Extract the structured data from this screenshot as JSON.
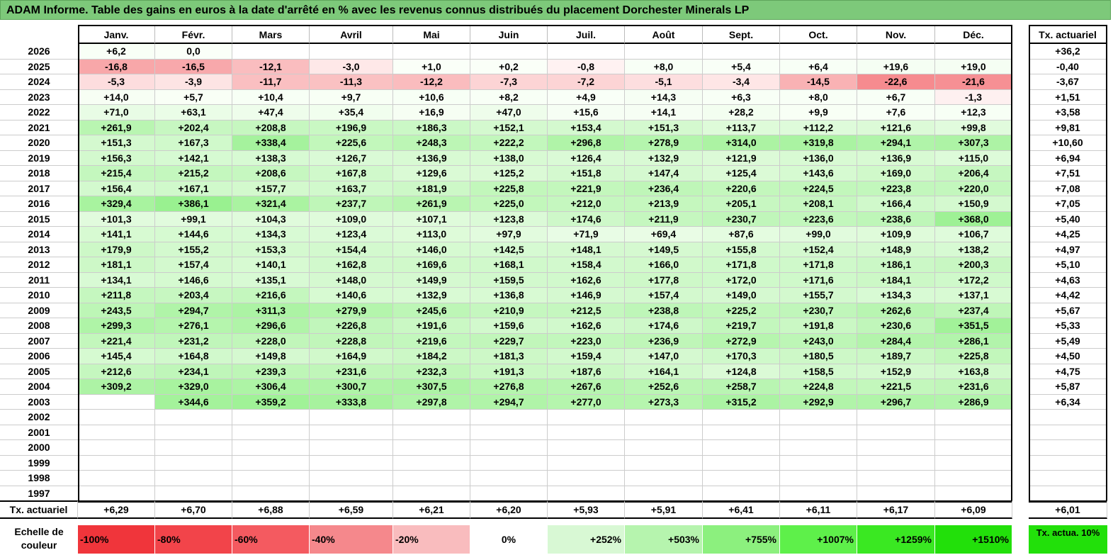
{
  "title": "ADAM Informe. Table des gains en euros à la date d'arrêté en % avec les revenus connus distribués du placement Dorchester Minerals LP",
  "months": [
    "Janv.",
    "Févr.",
    "Mars",
    "Avril",
    "Mai",
    "Juin",
    "Juil.",
    "Août",
    "Sept.",
    "Oct.",
    "Nov.",
    "Déc."
  ],
  "rate_header": "Tx. actuariel",
  "rows": [
    {
      "year": "2026",
      "values": [
        "+6,2",
        "0,0",
        "",
        "",
        "",
        "",
        "",
        "",
        "",
        "",
        "",
        ""
      ],
      "rate": "+36,2"
    },
    {
      "year": "2025",
      "values": [
        "-16,8",
        "-16,5",
        "-12,1",
        "-3,0",
        "+1,0",
        "+0,2",
        "-0,8",
        "+8,0",
        "+5,4",
        "+6,4",
        "+19,6",
        "+19,0"
      ],
      "rate": "-0,40"
    },
    {
      "year": "2024",
      "values": [
        "-5,3",
        "-3,9",
        "-11,7",
        "-11,3",
        "-12,2",
        "-7,3",
        "-7,2",
        "-5,1",
        "-3,4",
        "-14,5",
        "-22,6",
        "-21,6"
      ],
      "rate": "-3,67"
    },
    {
      "year": "2023",
      "values": [
        "+14,0",
        "+5,7",
        "+10,4",
        "+9,7",
        "+10,6",
        "+8,2",
        "+4,9",
        "+14,3",
        "+6,3",
        "+8,0",
        "+6,7",
        "-1,3"
      ],
      "rate": "+1,51"
    },
    {
      "year": "2022",
      "values": [
        "+71,0",
        "+63,1",
        "+47,4",
        "+35,4",
        "+16,9",
        "+47,0",
        "+15,6",
        "+14,1",
        "+28,2",
        "+9,9",
        "+7,6",
        "+12,3"
      ],
      "rate": "+3,58"
    },
    {
      "year": "2021",
      "values": [
        "+261,9",
        "+202,4",
        "+208,8",
        "+196,9",
        "+186,3",
        "+152,1",
        "+153,4",
        "+151,3",
        "+113,7",
        "+112,2",
        "+121,6",
        "+99,8"
      ],
      "rate": "+9,81"
    },
    {
      "year": "2020",
      "values": [
        "+151,3",
        "+167,3",
        "+338,4",
        "+225,6",
        "+248,3",
        "+222,2",
        "+296,8",
        "+278,9",
        "+314,0",
        "+319,8",
        "+294,1",
        "+307,3"
      ],
      "rate": "+10,60"
    },
    {
      "year": "2019",
      "values": [
        "+156,3",
        "+142,1",
        "+138,3",
        "+126,7",
        "+136,9",
        "+138,0",
        "+126,4",
        "+132,9",
        "+121,9",
        "+136,0",
        "+136,9",
        "+115,0"
      ],
      "rate": "+6,94"
    },
    {
      "year": "2018",
      "values": [
        "+215,4",
        "+215,2",
        "+208,6",
        "+167,8",
        "+129,6",
        "+125,2",
        "+151,8",
        "+147,4",
        "+125,4",
        "+143,6",
        "+169,0",
        "+206,4"
      ],
      "rate": "+7,51"
    },
    {
      "year": "2017",
      "values": [
        "+156,4",
        "+167,1",
        "+157,7",
        "+163,7",
        "+181,9",
        "+225,8",
        "+221,9",
        "+236,4",
        "+220,6",
        "+224,5",
        "+223,8",
        "+220,0"
      ],
      "rate": "+7,08"
    },
    {
      "year": "2016",
      "values": [
        "+329,4",
        "+386,1",
        "+321,4",
        "+237,7",
        "+261,9",
        "+225,0",
        "+212,0",
        "+213,9",
        "+205,1",
        "+208,1",
        "+166,4",
        "+150,9"
      ],
      "rate": "+7,05"
    },
    {
      "year": "2015",
      "values": [
        "+101,3",
        "+99,1",
        "+104,3",
        "+109,0",
        "+107,1",
        "+123,8",
        "+174,6",
        "+211,9",
        "+230,7",
        "+223,6",
        "+238,6",
        "+368,0"
      ],
      "rate": "+5,40"
    },
    {
      "year": "2014",
      "values": [
        "+141,1",
        "+144,6",
        "+134,3",
        "+123,4",
        "+113,0",
        "+97,9",
        "+71,9",
        "+69,4",
        "+87,6",
        "+99,0",
        "+109,9",
        "+106,7"
      ],
      "rate": "+4,25"
    },
    {
      "year": "2013",
      "values": [
        "+179,9",
        "+155,2",
        "+153,3",
        "+154,4",
        "+146,0",
        "+142,5",
        "+148,1",
        "+149,5",
        "+155,8",
        "+152,4",
        "+148,9",
        "+138,2"
      ],
      "rate": "+4,97"
    },
    {
      "year": "2012",
      "values": [
        "+181,1",
        "+157,4",
        "+140,1",
        "+162,8",
        "+169,6",
        "+168,1",
        "+158,4",
        "+166,0",
        "+171,8",
        "+171,8",
        "+186,1",
        "+200,3"
      ],
      "rate": "+5,10"
    },
    {
      "year": "2011",
      "values": [
        "+134,1",
        "+146,6",
        "+135,1",
        "+148,0",
        "+149,9",
        "+159,5",
        "+162,6",
        "+177,8",
        "+172,0",
        "+171,6",
        "+184,1",
        "+172,2"
      ],
      "rate": "+4,63"
    },
    {
      "year": "2010",
      "values": [
        "+211,8",
        "+203,4",
        "+216,6",
        "+140,6",
        "+132,9",
        "+136,8",
        "+146,9",
        "+157,4",
        "+149,0",
        "+155,7",
        "+134,3",
        "+137,1"
      ],
      "rate": "+4,42"
    },
    {
      "year": "2009",
      "values": [
        "+243,5",
        "+294,7",
        "+311,3",
        "+279,9",
        "+245,6",
        "+210,9",
        "+212,5",
        "+238,8",
        "+225,2",
        "+230,7",
        "+262,6",
        "+237,4"
      ],
      "rate": "+5,67"
    },
    {
      "year": "2008",
      "values": [
        "+299,3",
        "+276,1",
        "+296,6",
        "+226,8",
        "+191,6",
        "+159,6",
        "+162,6",
        "+174,6",
        "+219,7",
        "+191,8",
        "+230,6",
        "+351,5"
      ],
      "rate": "+5,33"
    },
    {
      "year": "2007",
      "values": [
        "+221,4",
        "+231,2",
        "+228,0",
        "+228,8",
        "+219,6",
        "+229,7",
        "+223,0",
        "+236,9",
        "+272,9",
        "+243,0",
        "+284,4",
        "+286,1"
      ],
      "rate": "+5,49"
    },
    {
      "year": "2006",
      "values": [
        "+145,4",
        "+164,8",
        "+149,8",
        "+164,9",
        "+184,2",
        "+181,3",
        "+159,4",
        "+147,0",
        "+170,3",
        "+180,5",
        "+189,7",
        "+225,8"
      ],
      "rate": "+4,50"
    },
    {
      "year": "2005",
      "values": [
        "+212,6",
        "+234,1",
        "+239,3",
        "+231,6",
        "+232,3",
        "+191,3",
        "+187,6",
        "+164,1",
        "+124,8",
        "+158,5",
        "+152,9",
        "+163,8"
      ],
      "rate": "+4,75"
    },
    {
      "year": "2004",
      "values": [
        "+309,2",
        "+329,0",
        "+306,4",
        "+300,7",
        "+307,5",
        "+276,8",
        "+267,6",
        "+252,6",
        "+258,7",
        "+224,8",
        "+221,5",
        "+231,6"
      ],
      "rate": "+5,87"
    },
    {
      "year": "2003",
      "values": [
        "",
        "+344,6",
        "+359,2",
        "+333,8",
        "+297,8",
        "+294,7",
        "+277,0",
        "+273,3",
        "+315,2",
        "+292,9",
        "+296,7",
        "+286,9"
      ],
      "rate": "+6,34"
    },
    {
      "year": "2002",
      "values": [
        "",
        "",
        "",
        "",
        "",
        "",
        "",
        "",
        "",
        "",
        "",
        ""
      ],
      "rate": ""
    },
    {
      "year": "2001",
      "values": [
        "",
        "",
        "",
        "",
        "",
        "",
        "",
        "",
        "",
        "",
        "",
        ""
      ],
      "rate": ""
    },
    {
      "year": "2000",
      "values": [
        "",
        "",
        "",
        "",
        "",
        "",
        "",
        "",
        "",
        "",
        "",
        ""
      ],
      "rate": ""
    },
    {
      "year": "1999",
      "values": [
        "",
        "",
        "",
        "",
        "",
        "",
        "",
        "",
        "",
        "",
        "",
        ""
      ],
      "rate": ""
    },
    {
      "year": "1998",
      "values": [
        "",
        "",
        "",
        "",
        "",
        "",
        "",
        "",
        "",
        "",
        "",
        ""
      ],
      "rate": ""
    },
    {
      "year": "1997",
      "values": [
        "",
        "",
        "",
        "",
        "",
        "",
        "",
        "",
        "",
        "",
        "",
        ""
      ],
      "rate": ""
    }
  ],
  "footer": {
    "label": "Tx. actuariel",
    "values": [
      "+6,29",
      "+6,70",
      "+6,88",
      "+6,59",
      "+6,21",
      "+6,20",
      "+5,93",
      "+5,91",
      "+6,41",
      "+6,11",
      "+6,17",
      "+6,09"
    ],
    "rate": "+6,01"
  },
  "scale": {
    "label": "Echelle de couleur",
    "items": [
      {
        "text": "-100%",
        "color": "#f0353b"
      },
      {
        "text": "-80%",
        "color": "#f2444a"
      },
      {
        "text": "-60%",
        "color": "#f45a60"
      },
      {
        "text": "-40%",
        "color": "#f5888c"
      },
      {
        "text": "-20%",
        "color": "#f9bcbe"
      },
      {
        "text": "0%",
        "color": "#ffffff"
      },
      {
        "text": "+252%",
        "color": "#d8f8d4"
      },
      {
        "text": "+503%",
        "color": "#b6f4ae"
      },
      {
        "text": "+755%",
        "color": "#8cf07e"
      },
      {
        "text": "+1007%",
        "color": "#5ef04a"
      },
      {
        "text": "+1259%",
        "color": "#3ae822"
      },
      {
        "text": "+1510%",
        "color": "#22e00a"
      }
    ],
    "rate_label": "Tx. actua. 10%",
    "rate_color": "#22e00a"
  },
  "colors": {
    "title_bg": "#7dc97a",
    "negative_max": "#f57f84",
    "positive_light": "#f2fcf0",
    "positive_strong": "#9ef093"
  }
}
